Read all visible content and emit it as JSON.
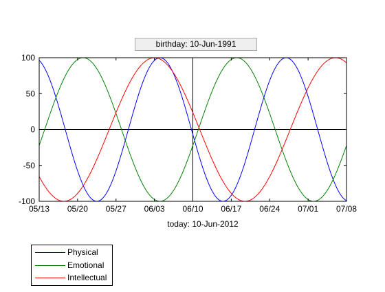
{
  "chart_data": {
    "type": "line",
    "title": "birthday: 10-Jun-1991",
    "xlabel": "today: 10-Jun-2012",
    "ylabel": "",
    "x_range": [
      "2012-05-13",
      "2012-07-08"
    ],
    "ylim": [
      -100,
      100
    ],
    "x_ticks": [
      "05/13",
      "05/20",
      "05/27",
      "06/03",
      "06/10",
      "06/17",
      "06/24",
      "07/01",
      "07/08"
    ],
    "y_ticks": [
      100,
      50,
      0,
      -50,
      -100
    ],
    "today_marker": "2012-06-10",
    "zero_line": 0,
    "grid": false,
    "legend_position": "bottom-left",
    "series": [
      {
        "name": "Physical",
        "color": "#0000ff",
        "period_days": 23,
        "peak_dates": [
          "2012-06-04",
          "2012-06-27"
        ]
      },
      {
        "name": "Emotional",
        "color": "#008000",
        "period_days": 28,
        "peak_dates": [
          "2012-05-21",
          "2012-06-18"
        ]
      },
      {
        "name": "Intellectual",
        "color": "#ff0000",
        "period_days": 33,
        "peak_dates": [
          "2012-06-03",
          "2012-07-06"
        ]
      }
    ]
  }
}
